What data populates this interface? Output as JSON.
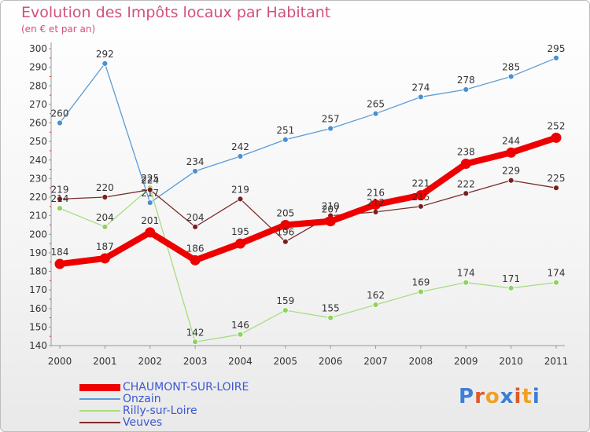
{
  "title": "Evolution des Impôts locaux par Habitant",
  "subtitle": "(en € et par an)",
  "logo": {
    "text": "Proxiti",
    "letter_colors": [
      "#3d7fd6",
      "#e05a2a",
      "#f0a020",
      "#3d7fd6",
      "#e05a2a",
      "#f0a020",
      "#3d7fd6"
    ]
  },
  "chart_data": {
    "type": "line",
    "title": "Evolution des Impôts locaux par Habitant",
    "subtitle": "(en € et par an)",
    "x": [
      "2000",
      "2001",
      "2002",
      "2003",
      "2004",
      "2005",
      "2006",
      "2007",
      "2008",
      "2009",
      "2010",
      "2011"
    ],
    "yticks": [
      140,
      150,
      160,
      170,
      180,
      190,
      200,
      210,
      220,
      230,
      240,
      250,
      260,
      270,
      280,
      290,
      300
    ],
    "ylim": [
      140,
      300
    ],
    "grid": false,
    "series": [
      {
        "name": "Onzain",
        "color": "#5b9bd5",
        "marker": "#4a8fd0",
        "width": 1.3,
        "values": [
          260,
          292,
          217,
          234,
          242,
          251,
          257,
          265,
          274,
          278,
          285,
          295
        ]
      },
      {
        "name": "Rilly-sur-Loire",
        "color": "#a6de80",
        "marker": "#8fd25e",
        "width": 1.3,
        "values": [
          214,
          204,
          225,
          142,
          146,
          159,
          155,
          162,
          169,
          174,
          171,
          174
        ]
      },
      {
        "name": "Veuves",
        "color": "#7b2c2c",
        "marker": "#7b1e1e",
        "width": 1.3,
        "values": [
          219,
          220,
          224,
          204,
          219,
          196,
          210,
          212,
          215,
          222,
          229,
          225
        ]
      },
      {
        "name": "CHAUMONT-SUR-LOIRE",
        "color": "#ee0000",
        "marker": "#ee0000",
        "width": 8,
        "values": [
          184,
          187,
          201,
          186,
          195,
          205,
          207,
          216,
          221,
          238,
          244,
          252
        ]
      }
    ],
    "legend": [
      "CHAUMONT-SUR-LOIRE",
      "Onzain",
      "Rilly-sur-Loire",
      "Veuves"
    ]
  }
}
